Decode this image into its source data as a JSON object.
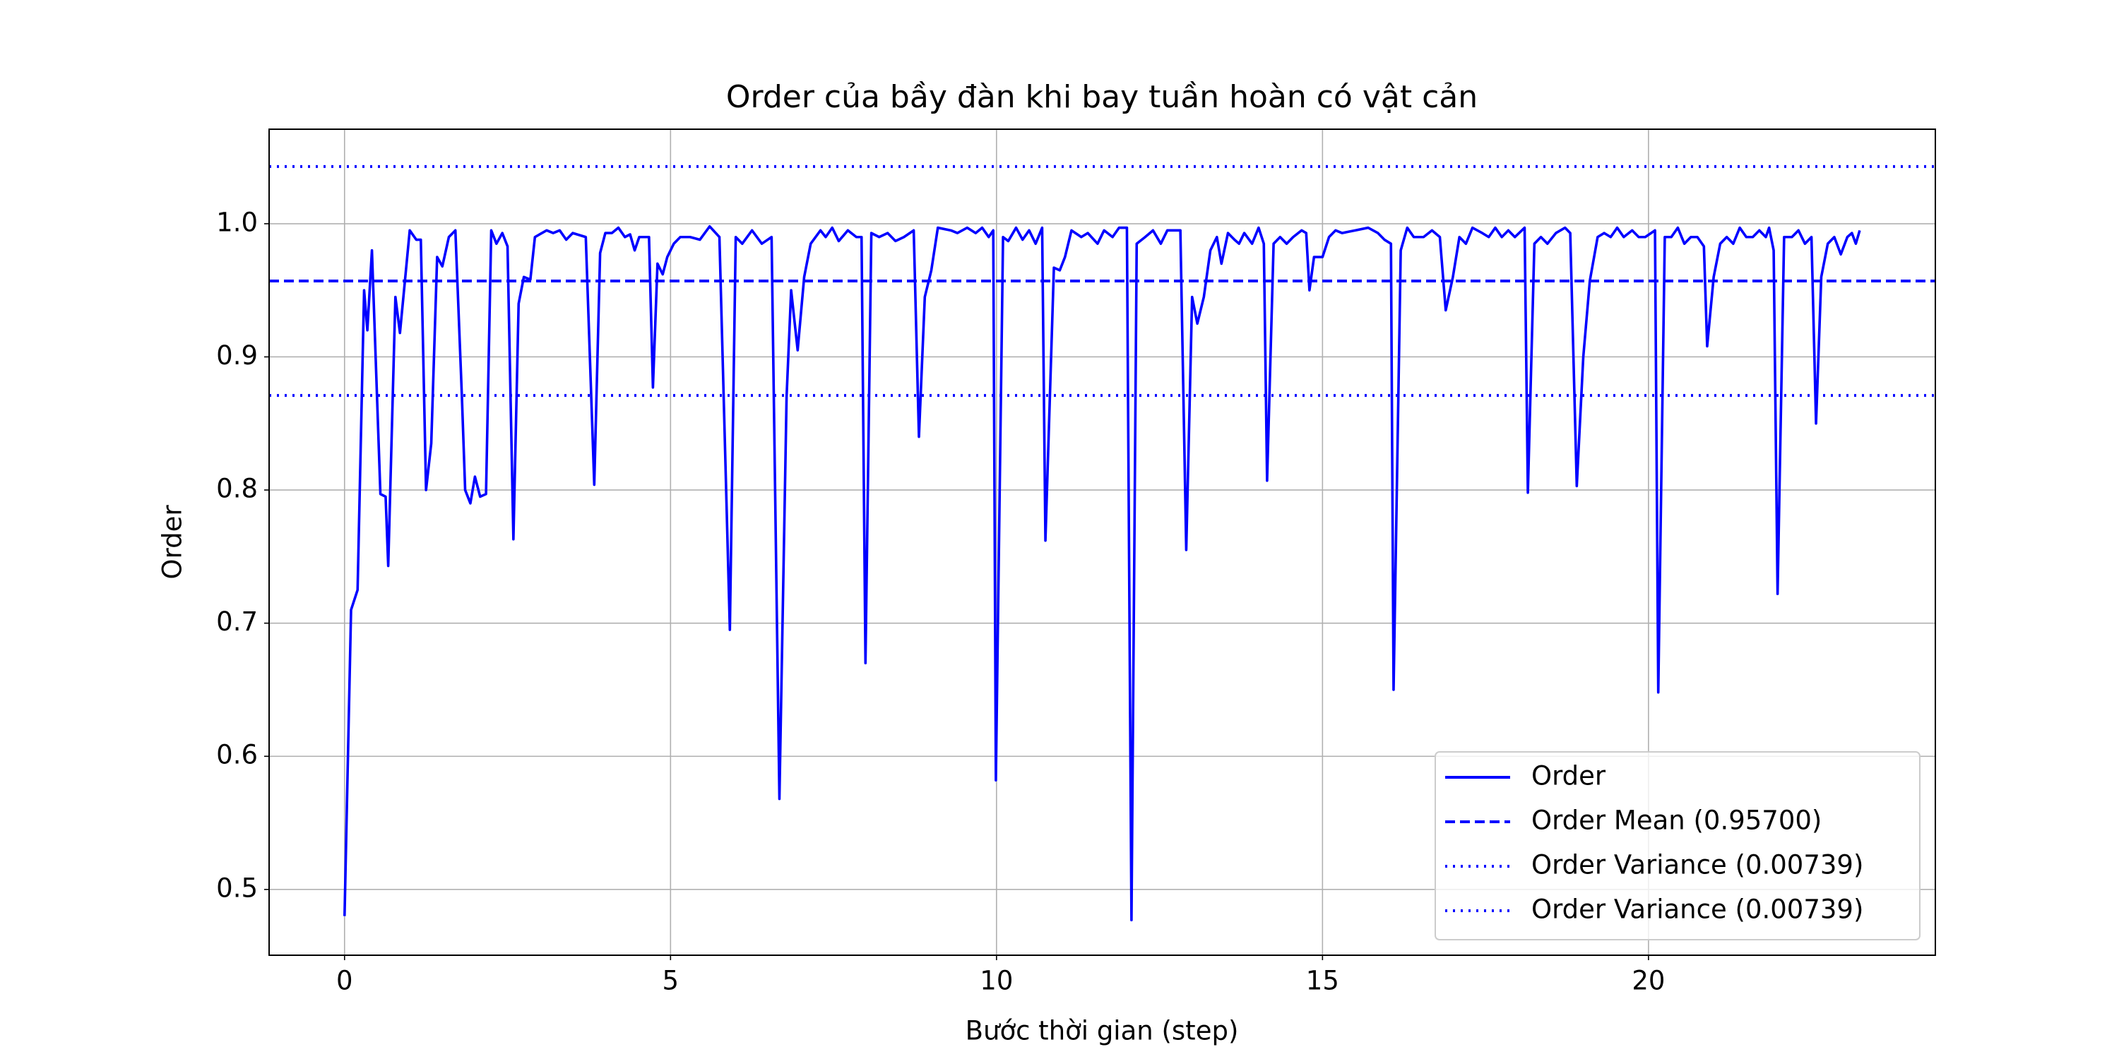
{
  "chart_data": {
    "type": "line",
    "title": "Order của bầy đàn khi bay tuần hoàn có vật cản",
    "x_label": "Bước thời gian (step)",
    "y_label": "Order",
    "x": [
      0,
      0.1,
      0.2,
      0.3,
      0.35,
      0.42,
      0.55,
      0.63,
      0.67,
      0.78,
      0.85,
      1.0,
      1.1,
      1.17,
      1.25,
      1.33,
      1.42,
      1.5,
      1.6,
      1.7,
      1.8,
      1.85,
      1.93,
      2.0,
      2.08,
      2.17,
      2.25,
      2.33,
      2.42,
      2.5,
      2.59,
      2.67,
      2.75,
      2.85,
      2.92,
      3.1,
      3.2,
      3.3,
      3.4,
      3.5,
      3.7,
      3.83,
      3.92,
      4.0,
      4.1,
      4.2,
      4.3,
      4.38,
      4.45,
      4.52,
      4.67,
      4.73,
      4.8,
      4.88,
      4.95,
      5.05,
      5.15,
      5.3,
      5.45,
      5.6,
      5.75,
      5.91,
      6.0,
      6.1,
      6.25,
      6.4,
      6.55,
      6.67,
      6.78,
      6.85,
      6.95,
      7.05,
      7.15,
      7.3,
      7.38,
      7.48,
      7.58,
      7.72,
      7.85,
      7.93,
      7.99,
      8.08,
      8.2,
      8.33,
      8.45,
      8.58,
      8.73,
      8.81,
      8.9,
      9.0,
      9.1,
      9.3,
      9.4,
      9.55,
      9.68,
      9.78,
      9.88,
      9.95,
      9.99,
      10.1,
      10.18,
      10.3,
      10.4,
      10.5,
      10.6,
      10.7,
      10.75,
      10.88,
      10.97,
      11.05,
      11.15,
      11.3,
      11.4,
      11.55,
      11.65,
      11.78,
      11.88,
      12.0,
      12.07,
      12.15,
      12.28,
      12.4,
      12.52,
      12.62,
      12.82,
      12.91,
      13.0,
      13.08,
      13.18,
      13.28,
      13.38,
      13.45,
      13.55,
      13.65,
      13.72,
      13.8,
      13.92,
      14.02,
      14.1,
      14.15,
      14.25,
      14.35,
      14.45,
      14.55,
      14.68,
      14.75,
      14.8,
      14.87,
      15.0,
      15.1,
      15.2,
      15.3,
      15.5,
      15.7,
      15.85,
      15.95,
      16.05,
      16.09,
      16.2,
      16.3,
      16.4,
      16.55,
      16.68,
      16.8,
      16.89,
      17.0,
      17.1,
      17.2,
      17.3,
      17.45,
      17.55,
      17.65,
      17.75,
      17.85,
      17.95,
      18.1,
      18.15,
      18.25,
      18.35,
      18.45,
      18.58,
      18.72,
      18.8,
      18.9,
      19.0,
      19.1,
      19.22,
      19.32,
      19.42,
      19.52,
      19.62,
      19.75,
      19.85,
      19.95,
      20.1,
      20.15,
      20.25,
      20.35,
      20.45,
      20.55,
      20.65,
      20.75,
      20.85,
      20.9,
      21.0,
      21.1,
      21.2,
      21.3,
      21.4,
      21.5,
      21.6,
      21.7,
      21.8,
      21.85,
      21.92,
      21.98,
      22.08,
      22.2,
      22.3,
      22.4,
      22.5,
      22.57,
      22.65,
      22.75,
      22.85,
      22.95,
      23.05,
      23.12,
      23.18,
      23.24
    ],
    "series": [
      {
        "name": "Order",
        "color": "#0000ff",
        "values": [
          0.48,
          0.71,
          0.725,
          0.95,
          0.92,
          0.98,
          0.797,
          0.795,
          0.743,
          0.945,
          0.918,
          0.995,
          0.988,
          0.988,
          0.8,
          0.835,
          0.975,
          0.968,
          0.99,
          0.995,
          0.87,
          0.8,
          0.79,
          0.81,
          0.795,
          0.797,
          0.995,
          0.985,
          0.993,
          0.983,
          0.763,
          0.94,
          0.96,
          0.958,
          0.99,
          0.995,
          0.993,
          0.995,
          0.988,
          0.993,
          0.99,
          0.804,
          0.978,
          0.993,
          0.993,
          0.997,
          0.99,
          0.992,
          0.98,
          0.99,
          0.99,
          0.877,
          0.97,
          0.962,
          0.975,
          0.985,
          0.99,
          0.99,
          0.988,
          0.998,
          0.99,
          0.695,
          0.99,
          0.985,
          0.995,
          0.985,
          0.99,
          0.568,
          0.87,
          0.95,
          0.905,
          0.96,
          0.985,
          0.995,
          0.99,
          0.997,
          0.987,
          0.995,
          0.99,
          0.99,
          0.67,
          0.993,
          0.99,
          0.993,
          0.987,
          0.99,
          0.995,
          0.84,
          0.945,
          0.965,
          0.997,
          0.995,
          0.993,
          0.997,
          0.993,
          0.997,
          0.99,
          0.995,
          0.582,
          0.99,
          0.987,
          0.997,
          0.988,
          0.995,
          0.985,
          0.997,
          0.762,
          0.967,
          0.965,
          0.975,
          0.995,
          0.99,
          0.993,
          0.985,
          0.995,
          0.99,
          0.997,
          0.997,
          0.477,
          0.985,
          0.99,
          0.995,
          0.985,
          0.995,
          0.995,
          0.755,
          0.945,
          0.925,
          0.945,
          0.98,
          0.99,
          0.97,
          0.993,
          0.988,
          0.985,
          0.993,
          0.985,
          0.997,
          0.985,
          0.807,
          0.985,
          0.99,
          0.985,
          0.99,
          0.995,
          0.993,
          0.95,
          0.975,
          0.975,
          0.99,
          0.995,
          0.993,
          0.995,
          0.997,
          0.993,
          0.988,
          0.985,
          0.65,
          0.98,
          0.997,
          0.99,
          0.99,
          0.995,
          0.99,
          0.935,
          0.96,
          0.99,
          0.985,
          0.997,
          0.993,
          0.99,
          0.997,
          0.99,
          0.995,
          0.99,
          0.997,
          0.798,
          0.985,
          0.99,
          0.985,
          0.993,
          0.997,
          0.993,
          0.803,
          0.9,
          0.957,
          0.99,
          0.993,
          0.99,
          0.997,
          0.99,
          0.995,
          0.99,
          0.99,
          0.995,
          0.648,
          0.99,
          0.99,
          0.997,
          0.985,
          0.99,
          0.99,
          0.983,
          0.908,
          0.96,
          0.985,
          0.99,
          0.985,
          0.997,
          0.99,
          0.99,
          0.995,
          0.99,
          0.997,
          0.98,
          0.722,
          0.99,
          0.99,
          0.995,
          0.985,
          0.99,
          0.85,
          0.96,
          0.985,
          0.99,
          0.977,
          0.99,
          0.993,
          0.985,
          0.995
        ]
      }
    ],
    "reference_lines": [
      {
        "name": "Order Mean (0.95700)",
        "value": 0.957,
        "style": "dashed",
        "color": "#0000ff"
      },
      {
        "name": "Order Variance (0.00739)",
        "value": 1.04297,
        "style": "dotted",
        "color": "#0000ff"
      },
      {
        "name": "Order Variance (0.00739)",
        "value": 0.87103,
        "style": "dotted",
        "color": "#0000ff"
      }
    ],
    "xlim": [
      -1.157,
      24.4
    ],
    "ylim": [
      0.4506,
      1.071
    ],
    "xticks": [
      0,
      5,
      10,
      15,
      20
    ],
    "yticks": [
      0.5,
      0.6,
      0.7,
      0.8,
      0.9,
      {
        "value": 1,
        "label": "1.0"
      }
    ],
    "grid": true,
    "legend": "lower right"
  }
}
